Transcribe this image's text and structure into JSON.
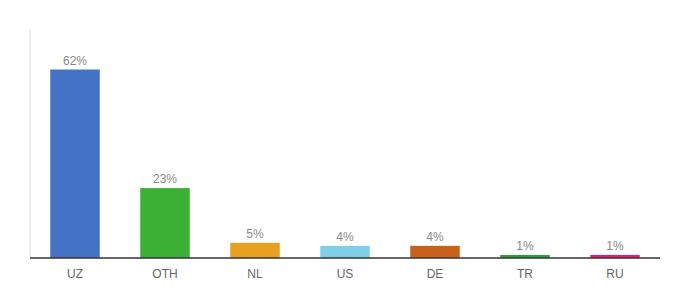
{
  "chart_data": {
    "type": "bar",
    "categories": [
      "UZ",
      "OTH",
      "NL",
      "US",
      "DE",
      "TR",
      "RU"
    ],
    "values": [
      62,
      23,
      5,
      4,
      4,
      1,
      1
    ],
    "value_labels": [
      "62%",
      "23%",
      "5%",
      "4%",
      "4%",
      "1%",
      "1%"
    ],
    "colors": [
      "#4472c4",
      "#3cb034",
      "#e8a020",
      "#7ecfe8",
      "#c8621a",
      "#2d9e3a",
      "#e8197a"
    ],
    "ylim": [
      0,
      75
    ],
    "data_labels": true,
    "tick_labels": "x",
    "grid": false
  }
}
